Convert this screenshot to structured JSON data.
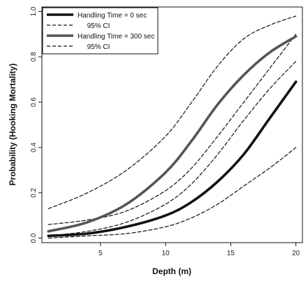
{
  "chart_data": {
    "type": "line",
    "title": "",
    "xlabel": "Depth (m)",
    "ylabel": "Probability (Hooking Mortality)",
    "xlim": [
      0.5,
      20.5
    ],
    "ylim": [
      -0.02,
      1.02
    ],
    "xticks": [
      5,
      10,
      15,
      20
    ],
    "yticks": [
      0.0,
      0.2,
      0.4,
      0.6,
      0.8,
      1.0
    ],
    "grid": false,
    "legend_position": "top-left",
    "legend": [
      {
        "label": "Handling Time =   0 sec",
        "style": "solid-thick",
        "color": "#111111"
      },
      {
        "label": "95% CI",
        "style": "dashed",
        "color": "#111111"
      },
      {
        "label": "Handling Time = 300 sec",
        "style": "solid-thick",
        "color": "#555555"
      },
      {
        "label": "95% CI",
        "style": "dashed",
        "color": "#111111"
      }
    ],
    "series": [
      {
        "name": "Handling Time =   0 sec",
        "style": "solid-thick",
        "color": "#111111",
        "x": [
          1,
          4,
          7,
          10,
          12,
          14,
          16,
          18,
          20
        ],
        "y": [
          0.01,
          0.02,
          0.05,
          0.1,
          0.16,
          0.25,
          0.37,
          0.53,
          0.69
        ]
      },
      {
        "name": "95% CI",
        "style": "dashed",
        "color": "#111111",
        "x": [
          1,
          4,
          7,
          10,
          12,
          14,
          16,
          18,
          20
        ],
        "y": [
          0.0,
          0.01,
          0.02,
          0.05,
          0.09,
          0.15,
          0.23,
          0.31,
          0.4
        ]
      },
      {
        "name": "95% CI",
        "style": "dashed",
        "color": "#111111",
        "x": [
          1,
          4,
          7,
          10,
          12,
          14,
          16,
          18,
          20
        ],
        "y": [
          0.06,
          0.08,
          0.12,
          0.21,
          0.31,
          0.45,
          0.6,
          0.75,
          0.9
        ]
      },
      {
        "name": "Handling Time = 300 sec",
        "style": "solid-thick",
        "color": "#555555",
        "x": [
          1,
          4,
          7,
          10,
          12,
          14,
          16,
          18,
          20
        ],
        "y": [
          0.03,
          0.07,
          0.15,
          0.29,
          0.43,
          0.59,
          0.72,
          0.82,
          0.89
        ]
      },
      {
        "name": "95% CI",
        "style": "dashed",
        "color": "#111111",
        "x": [
          1,
          4,
          7,
          10,
          12,
          14,
          16,
          18,
          20
        ],
        "y": [
          0.01,
          0.03,
          0.07,
          0.15,
          0.24,
          0.37,
          0.52,
          0.66,
          0.78
        ]
      },
      {
        "name": "95% CI",
        "style": "dashed",
        "color": "#111111",
        "x": [
          1,
          4,
          7,
          10,
          12,
          14,
          16,
          18,
          20
        ],
        "y": [
          0.13,
          0.2,
          0.3,
          0.45,
          0.6,
          0.76,
          0.88,
          0.94,
          0.98
        ]
      }
    ]
  }
}
